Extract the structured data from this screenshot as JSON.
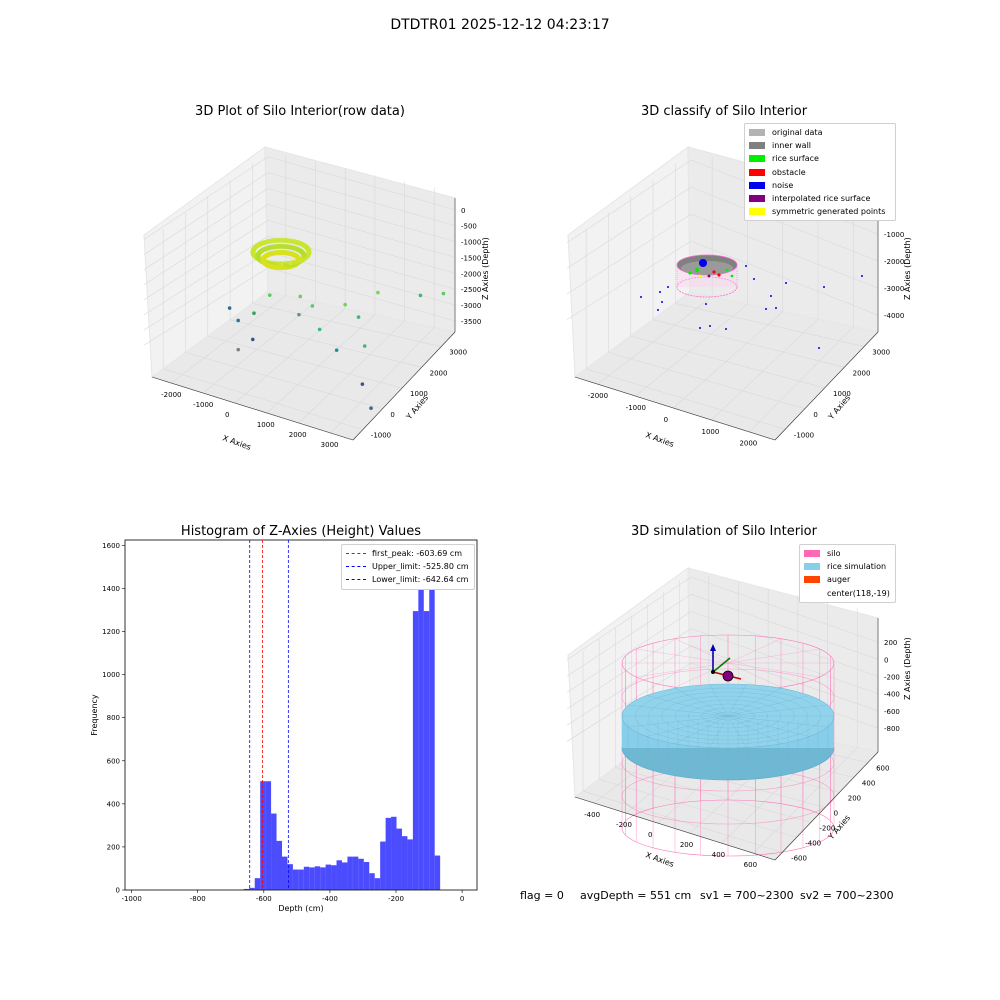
{
  "suptitle": "DTDTR01 2025-12-12 04:23:17",
  "footer": {
    "flag": "flag = 0",
    "avg": "avgDepth = 551 cm",
    "sv1": "sv1 = 700~2300",
    "sv2": "sv2 = 700~2300"
  },
  "chart_data": [
    {
      "type": "scatter",
      "title": "3D Plot of Silo Interior(row data)",
      "projection": "3d",
      "xlabel": "X Axies",
      "ylabel": "Y Axies",
      "zlabel": "Z Axies (Depth)",
      "x_ticks": [
        "-2000",
        "-1000",
        "0",
        "1000",
        "2000",
        "3000"
      ],
      "y_ticks": [
        "-1000",
        "0",
        "1000",
        "2000",
        "3000"
      ],
      "z_ticks": [
        "0",
        "-500",
        "-1000",
        "-1500",
        "-2000",
        "-2500",
        "-3000",
        "-3500"
      ],
      "xlim": [
        -2500,
        3000
      ],
      "ylim": [
        -1500,
        3300
      ],
      "zlim": [
        -3700,
        200
      ],
      "colormap": "viridis",
      "points": [
        {
          "x": -100,
          "y": 100,
          "z": -600,
          "c": "#c8e52a"
        },
        {
          "x": 0,
          "y": 100,
          "z": -550,
          "c": "#d3e62a"
        },
        {
          "x": 100,
          "y": 200,
          "z": -650,
          "c": "#bde12f"
        },
        {
          "x": -200,
          "y": 300,
          "z": -700,
          "c": "#c6e52c"
        },
        {
          "x": 100,
          "y": 300,
          "z": -600,
          "c": "#dbe429"
        },
        {
          "x": 300,
          "y": 400,
          "z": -1500,
          "c": "#6ccd5a"
        },
        {
          "x": 500,
          "y": 600,
          "z": -1800,
          "c": "#5ec962"
        },
        {
          "x": 1000,
          "y": 1200,
          "z": -1900,
          "c": "#73d056"
        },
        {
          "x": 1500,
          "y": 1800,
          "z": -1700,
          "c": "#80d34c"
        },
        {
          "x": 2200,
          "y": 2500,
          "z": -1900,
          "c": "#3aba76"
        },
        {
          "x": 2500,
          "y": 3000,
          "z": -2000,
          "c": "#5ec962"
        },
        {
          "x": -1500,
          "y": 200,
          "z": -2300,
          "c": "#2c728e"
        },
        {
          "x": -1200,
          "y": 100,
          "z": -2500,
          "c": "#2a788e"
        },
        {
          "x": -900,
          "y": 300,
          "z": -2300,
          "c": "#31a354"
        },
        {
          "x": -800,
          "y": 100,
          "z": -2900,
          "c": "#3b528b"
        },
        {
          "x": -1000,
          "y": -200,
          "z": -3100,
          "c": "#7f7f7f"
        },
        {
          "x": -600,
          "y": 500,
          "z": -1800,
          "c": "#5ec962"
        },
        {
          "x": 0,
          "y": 800,
          "z": -2300,
          "c": "#6c8e9a"
        },
        {
          "x": 500,
          "y": 900,
          "z": -2600,
          "c": "#3aba76"
        },
        {
          "x": 900,
          "y": 1000,
          "z": -3100,
          "c": "#21918c"
        },
        {
          "x": 1300,
          "y": 1300,
          "z": -2200,
          "c": "#3aba76"
        },
        {
          "x": 1800,
          "y": 800,
          "z": -2600,
          "c": "#3aba76"
        },
        {
          "x": 2000,
          "y": 400,
          "z": -3400,
          "c": "#3b528b"
        },
        {
          "x": 2700,
          "y": -300,
          "z": -3500,
          "c": "#31688e"
        }
      ]
    },
    {
      "type": "scatter",
      "title": "3D classify of Silo Interior",
      "projection": "3d",
      "xlabel": "X Axies",
      "ylabel": "Y Axies",
      "zlabel": "Z Axies (Depth)",
      "x_ticks": [
        "-2000",
        "-1000",
        "0",
        "1000",
        "2000"
      ],
      "y_ticks": [
        "-1000",
        "0",
        "1000",
        "2000",
        "3000"
      ],
      "z_ticks": [
        "-1000",
        "-2000",
        "-3000",
        "-4000"
      ],
      "legend_location": "top-right",
      "series": [
        {
          "name": "original data",
          "color": "#b3b3b3"
        },
        {
          "name": "inner wall",
          "color": "#808080"
        },
        {
          "name": "rice surface",
          "color": "#00ee00"
        },
        {
          "name": "obstacle",
          "color": "#ff0000"
        },
        {
          "name": "noise",
          "color": "#0000ee"
        },
        {
          "name": "interpolated rice surface",
          "color": "#800080"
        },
        {
          "name": "symmetric generated points",
          "color": "#ffff00"
        }
      ]
    },
    {
      "type": "bar",
      "subtype": "histogram",
      "title": "Histogram of Z-Axies (Height) Values",
      "xlabel": "Depth (cm)",
      "ylabel": "Frequency",
      "xlim": [
        -1020,
        45
      ],
      "ylim": [
        0,
        1625
      ],
      "x_ticks": [
        -1000,
        -800,
        -600,
        -400,
        -200,
        0
      ],
      "y_ticks": [
        0,
        200,
        400,
        600,
        800,
        1000,
        1200,
        1400,
        1600
      ],
      "bar_color": "#0000ff",
      "bin_width": 16.5,
      "bin_starts": [
        -677,
        -660.5,
        -644,
        -627.5,
        -611,
        -594.5,
        -578,
        -561.5,
        -545,
        -528.5,
        -512,
        -495.5,
        -479,
        -462.5,
        -446,
        -429.5,
        -413,
        -396.5,
        -380,
        -363.5,
        -347,
        -330.5,
        -314,
        -297.5,
        -281,
        -264.5,
        -248,
        -231.5,
        -215,
        -198.5,
        -182,
        -165.5,
        -149,
        -132.5,
        -116,
        -99.5,
        -83,
        -66.5,
        -50,
        -33.5,
        -17
      ],
      "values": [
        2,
        5,
        10,
        55,
        505,
        505,
        355,
        228,
        155,
        120,
        95,
        95,
        108,
        105,
        110,
        105,
        118,
        115,
        138,
        128,
        155,
        155,
        145,
        130,
        78,
        55,
        225,
        335,
        340,
        285,
        250,
        235,
        1295,
        1530,
        1295,
        1530,
        160,
        0,
        0,
        0,
        0
      ],
      "annotations": [
        {
          "type": "vline",
          "x": -603.69,
          "color": "#ff0000",
          "label": "first_peak: -603.69 cm"
        },
        {
          "type": "vline",
          "x": -525.8,
          "color": "#0000ff",
          "label": "Upper_limit: -525.80 cm"
        },
        {
          "type": "vline",
          "x": -642.64,
          "color": "#0000ff",
          "label": "Lower_limit: -642.64 cm"
        }
      ],
      "legend_location": "top-right"
    },
    {
      "type": "scatter",
      "title": "3D simulation of Silo Interior",
      "projection": "3d",
      "xlabel": "X Axies",
      "ylabel": "Y Axies",
      "zlabel": "Z Axies (Depth)",
      "x_ticks": [
        "-400",
        "-200",
        "0",
        "200",
        "400",
        "600"
      ],
      "y_ticks": [
        "-600",
        "-400",
        "-200",
        "0",
        "200",
        "400",
        "600"
      ],
      "z_ticks": [
        "200",
        "0",
        "-200",
        "-400",
        "-600",
        "-800"
      ],
      "legend_location": "top-right",
      "series": [
        {
          "name": "silo",
          "color": "#ff69b4"
        },
        {
          "name": "rice simulation",
          "color": "#87ceeb"
        },
        {
          "name": "auger",
          "color": "#ff4500"
        },
        {
          "name": "center(118,-19)",
          "color": "#ffffff"
        }
      ]
    }
  ]
}
